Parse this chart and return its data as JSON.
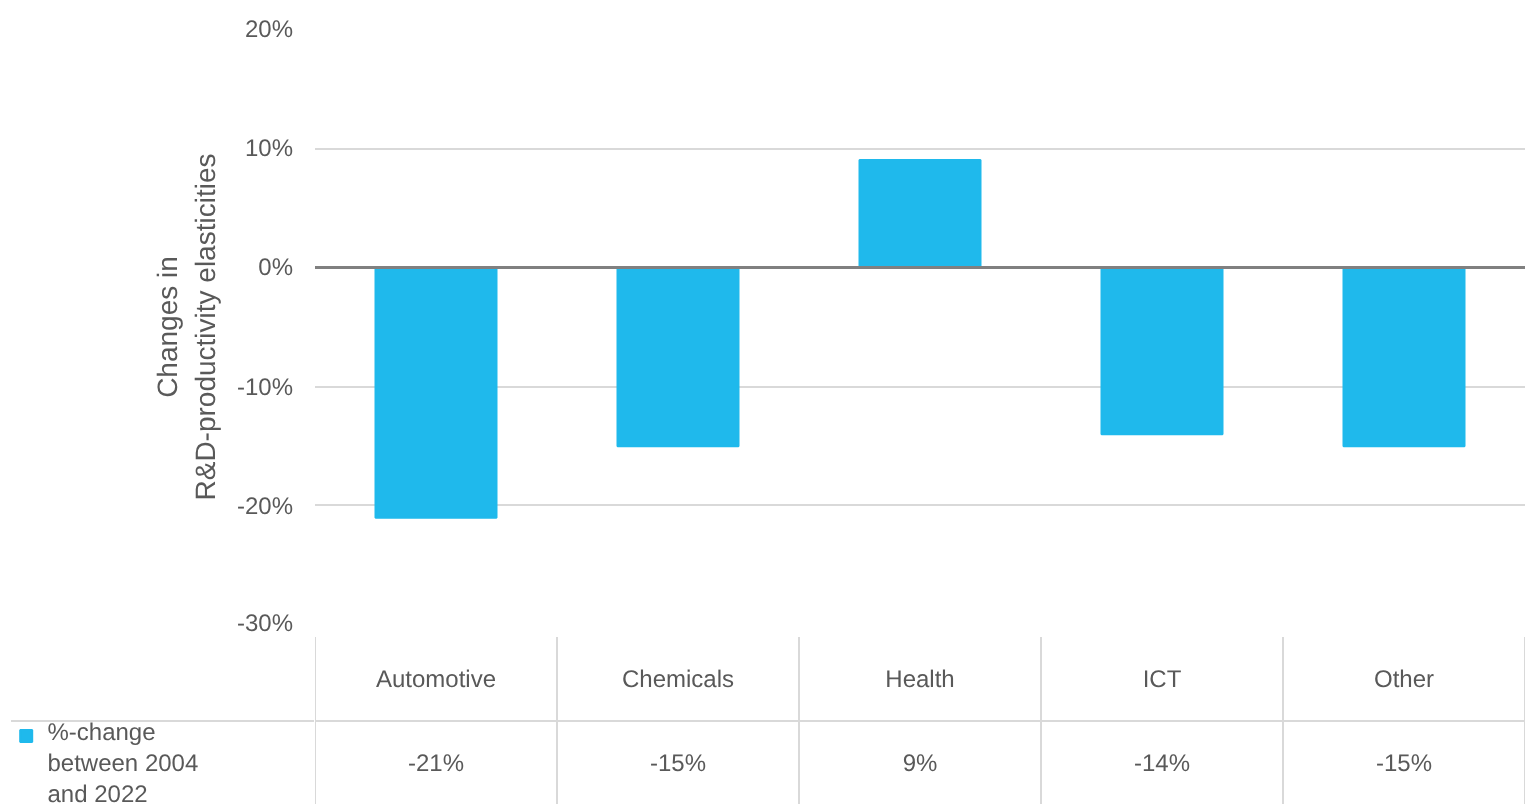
{
  "chart_data": {
    "type": "bar",
    "ylabel": "Changes in R&D-productivity elasticities",
    "categories": [
      "Automotive",
      "Chemicals",
      "Health",
      "ICT",
      "Other"
    ],
    "series": [
      {
        "name": "%-change between 2004 and 2022",
        "color": "#1fb9ec",
        "values": [
          -21,
          -15,
          9,
          -14,
          -15
        ],
        "value_labels": [
          "-21%",
          "-15%",
          "9%",
          "-14%",
          "-15%"
        ]
      }
    ],
    "ylim": [
      -30,
      20
    ],
    "yticks": [
      {
        "value": -30,
        "label": "-30%"
      },
      {
        "value": -20,
        "label": "-20%"
      },
      {
        "value": -10,
        "label": "-10%"
      },
      {
        "value": 0,
        "label": "0%"
      },
      {
        "value": 10,
        "label": "10%"
      },
      {
        "value": 20,
        "label": "20%"
      }
    ],
    "grid": "y",
    "legend": "bottom left"
  }
}
